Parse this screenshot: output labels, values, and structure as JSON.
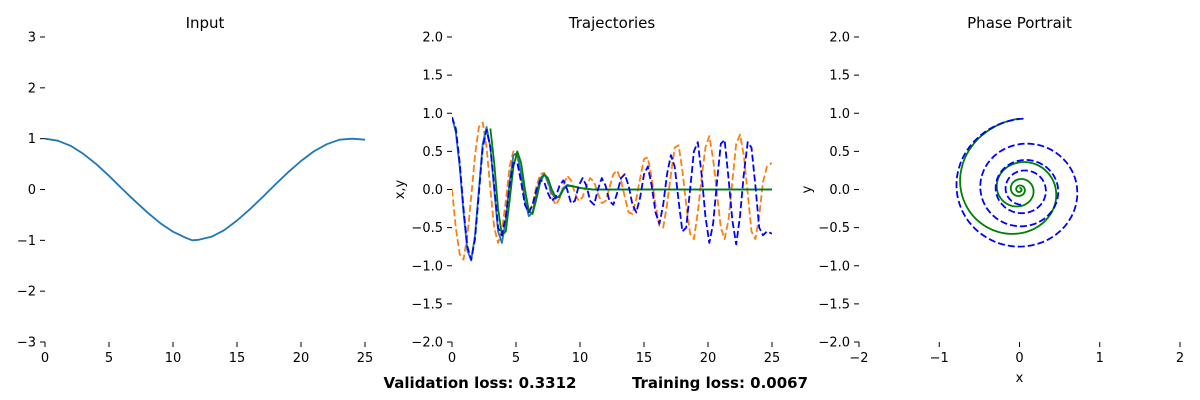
{
  "chart_data": [
    {
      "type": "line",
      "title": "Input",
      "xlabel": "",
      "ylabel": "",
      "xlim": [
        0,
        25
      ],
      "ylim": [
        -3,
        3
      ],
      "xticks": [
        0,
        5,
        10,
        15,
        20,
        25
      ],
      "yticks": [
        -3,
        -2,
        -1,
        0,
        1,
        2,
        3
      ],
      "grid": false,
      "series": [
        {
          "color": "#1f77b4",
          "style": "solid",
          "x": [
            0,
            1,
            2,
            3,
            4,
            5,
            6,
            7,
            8,
            9,
            10,
            11,
            11.5,
            12,
            13,
            14,
            15,
            16,
            17,
            18,
            19,
            20,
            21,
            22,
            23,
            24,
            25
          ],
          "y": [
            1.0,
            0.96,
            0.86,
            0.7,
            0.5,
            0.27,
            0.02,
            -0.22,
            -0.45,
            -0.66,
            -0.83,
            -0.95,
            -1.0,
            -0.99,
            -0.93,
            -0.8,
            -0.61,
            -0.39,
            -0.15,
            0.1,
            0.34,
            0.56,
            0.75,
            0.89,
            0.98,
            1.0,
            0.98
          ]
        }
      ]
    },
    {
      "type": "line",
      "title": "Trajectories",
      "xlabel": "",
      "ylabel": "x,y",
      "xlim": [
        0,
        25
      ],
      "ylim": [
        -2,
        2
      ],
      "xticks": [
        0,
        5,
        10,
        15,
        20,
        25
      ],
      "yticks": [
        -2.0,
        -1.5,
        -1.0,
        -0.5,
        0.0,
        0.5,
        1.0,
        1.5,
        2.0
      ],
      "grid": false,
      "series": [
        {
          "color": "#ff7f0e",
          "style": "dashed",
          "x": [
            0,
            0.3,
            0.6,
            0.9,
            1.2,
            1.5,
            1.8,
            2.1,
            2.4,
            2.7,
            3.0,
            3.3,
            3.6,
            3.9,
            4.2,
            4.5,
            4.8,
            5.1,
            5.4,
            5.7,
            6.0,
            6.3,
            6.6,
            6.9,
            7.2,
            7.5,
            7.8,
            8.1,
            8.4,
            8.7,
            9.0,
            9.3,
            9.6,
            9.9,
            10.2,
            10.5,
            10.8,
            11.1,
            11.4,
            11.7,
            12.0,
            12.3,
            12.6,
            12.9,
            13.2,
            13.5,
            13.8,
            14.1,
            14.4,
            14.7,
            15.0,
            15.3,
            15.6,
            15.9,
            16.2,
            16.5,
            16.8,
            17.1,
            17.4,
            17.7,
            18.0,
            18.3,
            18.6,
            18.9,
            19.2,
            19.5,
            19.8,
            20.1,
            20.4,
            20.7,
            21.0,
            21.3,
            21.6,
            21.9,
            22.2,
            22.5,
            22.8,
            23.1,
            23.4,
            23.7,
            24.0,
            24.3,
            24.6,
            25.0
          ],
          "y": [
            0.0,
            -0.5,
            -0.85,
            -0.92,
            -0.6,
            -0.1,
            0.45,
            0.82,
            0.88,
            0.55,
            0.0,
            -0.5,
            -0.7,
            -0.55,
            -0.15,
            0.3,
            0.5,
            0.42,
            0.1,
            -0.2,
            -0.3,
            -0.2,
            0.05,
            0.2,
            0.22,
            0.08,
            -0.1,
            -0.2,
            -0.12,
            0.05,
            0.18,
            0.12,
            -0.05,
            -0.15,
            -0.1,
            0.05,
            0.15,
            0.1,
            -0.05,
            -0.18,
            -0.15,
            0.02,
            0.2,
            0.25,
            0.12,
            -0.1,
            -0.3,
            -0.32,
            -0.12,
            0.15,
            0.4,
            0.42,
            0.15,
            -0.2,
            -0.48,
            -0.5,
            -0.2,
            0.2,
            0.55,
            0.58,
            0.25,
            -0.2,
            -0.58,
            -0.65,
            -0.3,
            0.15,
            0.55,
            0.7,
            0.4,
            -0.05,
            -0.5,
            -0.65,
            -0.4,
            0.1,
            0.6,
            0.72,
            0.45,
            -0.05,
            -0.55,
            -0.65,
            -0.35,
            0.1,
            0.3,
            0.35
          ]
        },
        {
          "color": "#1f77b4",
          "style": "solid",
          "x": [
            0,
            0.3,
            0.6,
            0.9,
            1.2,
            1.5,
            1.8,
            2.1,
            2.4,
            2.7,
            3.0,
            3.3,
            3.6,
            3.9,
            4.2,
            4.5,
            4.8,
            5.1,
            5.4,
            5.7,
            6.0,
            6.3,
            6.6,
            6.9,
            7.2,
            7.5,
            7.8,
            8.1,
            8.4,
            8.7,
            9.0,
            9.5,
            10,
            11,
            12,
            14,
            16,
            18,
            20,
            22,
            25
          ],
          "y": [
            0.95,
            0.75,
            0.3,
            -0.3,
            -0.8,
            -0.93,
            -0.6,
            0.0,
            0.6,
            0.82,
            0.55,
            0.0,
            -0.55,
            -0.7,
            -0.4,
            0.1,
            0.45,
            0.48,
            0.2,
            -0.15,
            -0.35,
            -0.3,
            -0.05,
            0.15,
            0.2,
            0.1,
            -0.05,
            -0.12,
            -0.08,
            0.02,
            0.06,
            0.04,
            0.02,
            0.0,
            0.0,
            0.0,
            0.0,
            0.0,
            0.0,
            0.0,
            0.0
          ]
        },
        {
          "color": "#008000",
          "style": "solid",
          "x": [
            3.0,
            3.3,
            3.6,
            3.9,
            4.2,
            4.5,
            4.8,
            5.1,
            5.4,
            5.7,
            6.0,
            6.3,
            6.6,
            6.9,
            7.2,
            7.5,
            7.8,
            8.1,
            8.4,
            8.7,
            9.0,
            9.5,
            10,
            11,
            12,
            14,
            16,
            18,
            20,
            22,
            25
          ],
          "y": [
            0.8,
            0.35,
            -0.25,
            -0.6,
            -0.55,
            -0.15,
            0.3,
            0.5,
            0.35,
            0.0,
            -0.28,
            -0.32,
            -0.12,
            0.1,
            0.2,
            0.15,
            0.0,
            -0.1,
            -0.1,
            0.0,
            0.05,
            0.04,
            0.02,
            0.0,
            0.0,
            0.0,
            0.0,
            0.0,
            0.0,
            0.0,
            0.0
          ]
        },
        {
          "color": "#0000ff",
          "style": "dashed",
          "x": [
            0,
            0.3,
            0.6,
            0.9,
            1.2,
            1.5,
            1.8,
            2.1,
            2.4,
            2.7,
            3.0,
            3.3,
            3.6,
            3.9,
            4.2,
            4.5,
            4.8,
            5.1,
            5.4,
            5.7,
            6.0,
            6.3,
            6.6,
            6.9,
            7.2,
            7.5,
            7.8,
            8.1,
            8.4,
            8.7,
            9.0,
            9.3,
            9.6,
            9.9,
            10.2,
            10.5,
            10.8,
            11.1,
            11.4,
            11.7,
            12.0,
            12.3,
            12.6,
            12.9,
            13.2,
            13.5,
            13.8,
            14.1,
            14.4,
            14.7,
            15.0,
            15.3,
            15.6,
            15.9,
            16.2,
            16.5,
            16.8,
            17.1,
            17.4,
            17.7,
            18.0,
            18.3,
            18.6,
            18.9,
            19.2,
            19.5,
            19.8,
            20.1,
            20.4,
            20.7,
            21.0,
            21.3,
            21.6,
            21.9,
            22.2,
            22.5,
            22.8,
            23.1,
            23.4,
            23.7,
            24.0,
            24.3,
            24.6,
            25.0
          ],
          "y": [
            0.95,
            0.8,
            0.35,
            -0.25,
            -0.75,
            -0.92,
            -0.65,
            -0.05,
            0.55,
            0.78,
            0.55,
            0.05,
            -0.5,
            -0.6,
            -0.35,
            0.05,
            0.35,
            0.35,
            0.1,
            -0.2,
            -0.3,
            -0.2,
            0.0,
            0.12,
            0.1,
            -0.05,
            -0.15,
            -0.1,
            0.05,
            0.12,
            0.0,
            -0.18,
            -0.15,
            0.05,
            0.15,
            0.05,
            -0.15,
            -0.2,
            0.0,
            0.15,
            0.05,
            -0.15,
            -0.2,
            -0.05,
            0.15,
            0.2,
            0.05,
            -0.2,
            -0.3,
            -0.1,
            0.2,
            0.3,
            0.05,
            -0.3,
            -0.45,
            -0.2,
            0.2,
            0.45,
            0.3,
            -0.15,
            -0.55,
            -0.5,
            0.0,
            0.5,
            0.62,
            0.2,
            -0.35,
            -0.7,
            -0.45,
            0.1,
            0.6,
            0.65,
            0.15,
            -0.4,
            -0.72,
            -0.35,
            0.2,
            0.62,
            0.55,
            0.05,
            -0.5,
            -0.6,
            -0.55,
            -0.58
          ]
        }
      ]
    },
    {
      "type": "line",
      "title": "Phase Portrait",
      "xlabel": "x",
      "ylabel": "y",
      "xlim": [
        -2,
        2
      ],
      "ylim": [
        -2,
        2
      ],
      "xticks": [
        -2,
        -1,
        0,
        1,
        2
      ],
      "yticks": [
        -2.0,
        -1.5,
        -1.0,
        -0.5,
        0.0,
        0.5,
        1.0,
        1.5,
        2.0
      ],
      "grid": false,
      "spirals": [
        {
          "color": "#008000",
          "style": "solid",
          "r_start": 0.93,
          "r_end": 0.02,
          "turns": 4.0,
          "phase0": 1.5708,
          "cx": 0.0,
          "cy": 0.0
        },
        {
          "color": "#0000ff",
          "style": "dashed",
          "r_start": 0.93,
          "r_end": 0.2,
          "turns": 3.5,
          "phase0": 1.5708,
          "cx": 0.05,
          "cy": 0.0
        }
      ]
    }
  ],
  "footer": {
    "validation_loss": "Validation loss: 0.3312",
    "training_loss": "Training loss: 0.0067"
  }
}
